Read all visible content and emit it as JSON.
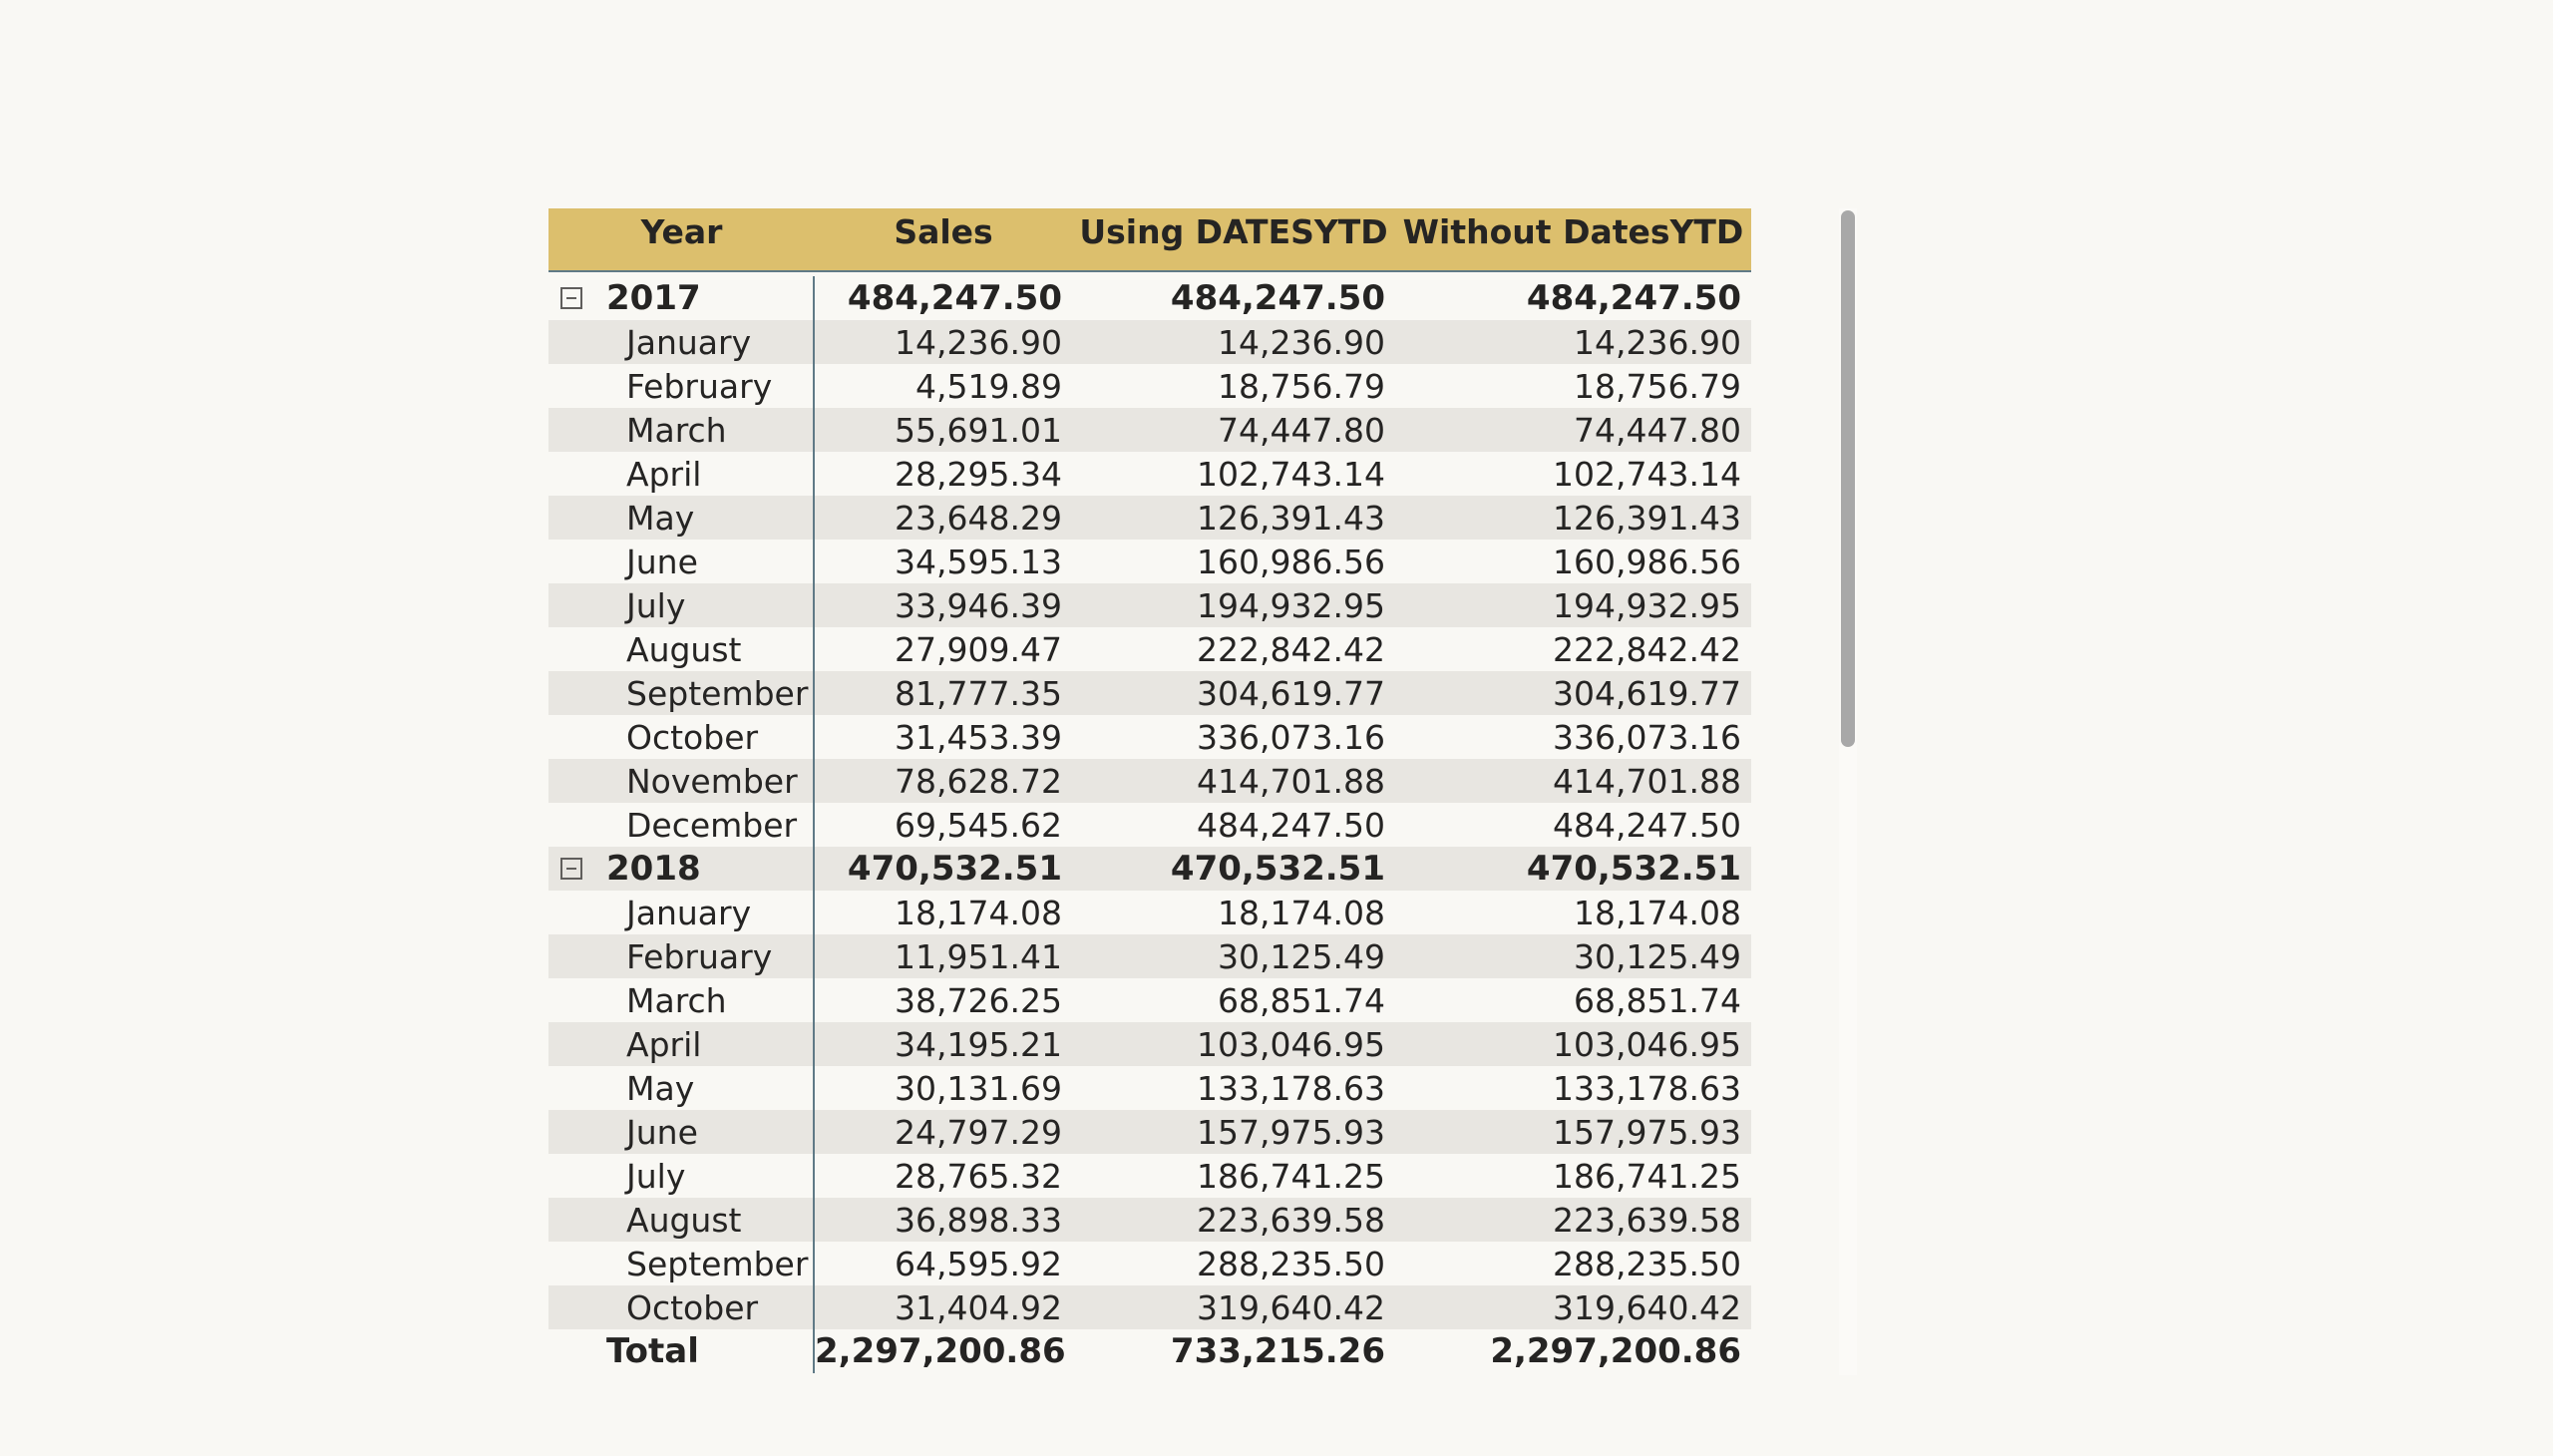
{
  "columns": [
    "Year",
    "Sales",
    "Using DATESYTD",
    "Without DatesYTD"
  ],
  "rows": [
    {
      "type": "year",
      "label": "2017",
      "sales": "484,247.50",
      "ytd": "484,247.50",
      "noytd": "484,247.50"
    },
    {
      "type": "month",
      "label": "January",
      "sales": "14,236.90",
      "ytd": "14,236.90",
      "noytd": "14,236.90"
    },
    {
      "type": "month",
      "label": "February",
      "sales": "4,519.89",
      "ytd": "18,756.79",
      "noytd": "18,756.79"
    },
    {
      "type": "month",
      "label": "March",
      "sales": "55,691.01",
      "ytd": "74,447.80",
      "noytd": "74,447.80"
    },
    {
      "type": "month",
      "label": "April",
      "sales": "28,295.34",
      "ytd": "102,743.14",
      "noytd": "102,743.14"
    },
    {
      "type": "month",
      "label": "May",
      "sales": "23,648.29",
      "ytd": "126,391.43",
      "noytd": "126,391.43"
    },
    {
      "type": "month",
      "label": "June",
      "sales": "34,595.13",
      "ytd": "160,986.56",
      "noytd": "160,986.56"
    },
    {
      "type": "month",
      "label": "July",
      "sales": "33,946.39",
      "ytd": "194,932.95",
      "noytd": "194,932.95"
    },
    {
      "type": "month",
      "label": "August",
      "sales": "27,909.47",
      "ytd": "222,842.42",
      "noytd": "222,842.42"
    },
    {
      "type": "month",
      "label": "September",
      "sales": "81,777.35",
      "ytd": "304,619.77",
      "noytd": "304,619.77"
    },
    {
      "type": "month",
      "label": "October",
      "sales": "31,453.39",
      "ytd": "336,073.16",
      "noytd": "336,073.16"
    },
    {
      "type": "month",
      "label": "November",
      "sales": "78,628.72",
      "ytd": "414,701.88",
      "noytd": "414,701.88"
    },
    {
      "type": "month",
      "label": "December",
      "sales": "69,545.62",
      "ytd": "484,247.50",
      "noytd": "484,247.50"
    },
    {
      "type": "year",
      "label": "2018",
      "sales": "470,532.51",
      "ytd": "470,532.51",
      "noytd": "470,532.51"
    },
    {
      "type": "month",
      "label": "January",
      "sales": "18,174.08",
      "ytd": "18,174.08",
      "noytd": "18,174.08"
    },
    {
      "type": "month",
      "label": "February",
      "sales": "11,951.41",
      "ytd": "30,125.49",
      "noytd": "30,125.49"
    },
    {
      "type": "month",
      "label": "March",
      "sales": "38,726.25",
      "ytd": "68,851.74",
      "noytd": "68,851.74"
    },
    {
      "type": "month",
      "label": "April",
      "sales": "34,195.21",
      "ytd": "103,046.95",
      "noytd": "103,046.95"
    },
    {
      "type": "month",
      "label": "May",
      "sales": "30,131.69",
      "ytd": "133,178.63",
      "noytd": "133,178.63"
    },
    {
      "type": "month",
      "label": "June",
      "sales": "24,797.29",
      "ytd": "157,975.93",
      "noytd": "157,975.93"
    },
    {
      "type": "month",
      "label": "July",
      "sales": "28,765.32",
      "ytd": "186,741.25",
      "noytd": "186,741.25"
    },
    {
      "type": "month",
      "label": "August",
      "sales": "36,898.33",
      "ytd": "223,639.58",
      "noytd": "223,639.58"
    },
    {
      "type": "month",
      "label": "September",
      "sales": "64,595.92",
      "ytd": "288,235.50",
      "noytd": "288,235.50"
    },
    {
      "type": "month",
      "label": "October",
      "sales": "31,404.92",
      "ytd": "319,640.42",
      "noytd": "319,640.42"
    }
  ],
  "total": {
    "label": "Total",
    "sales": "2,297,200.86",
    "ytd": "733,215.26",
    "noytd": "2,297,200.86"
  },
  "colors": {
    "header_bg": "#dcbf6d",
    "alt_row_bg": "#e8e6e1",
    "divider": "#607a86",
    "scrollbar_thumb": "#a8a8a8"
  },
  "icons": {
    "collapse": "collapse-minus-icon"
  }
}
